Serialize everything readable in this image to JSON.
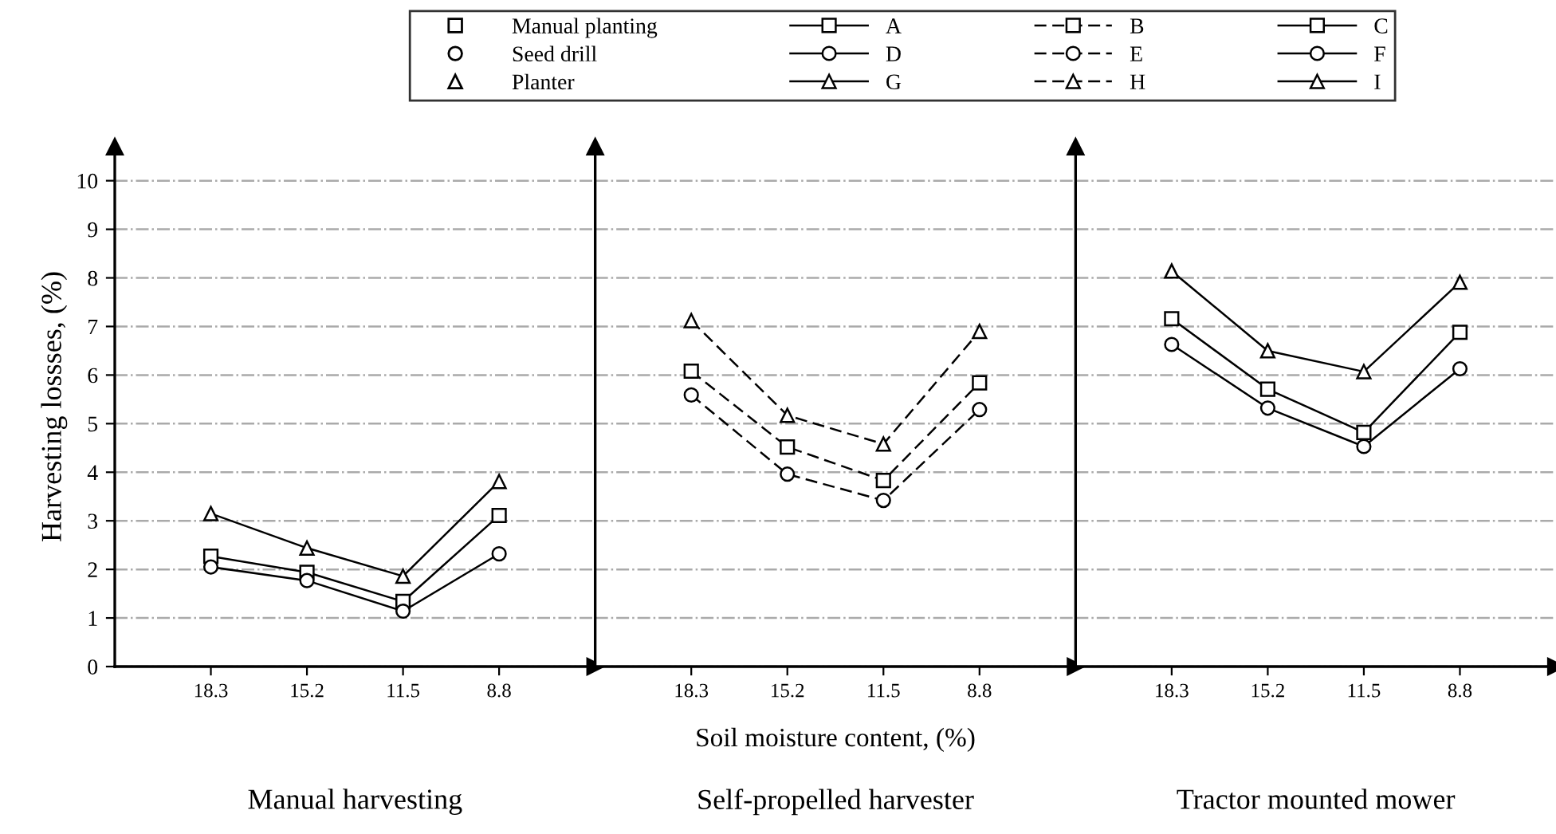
{
  "chart_data": [
    {
      "type": "line",
      "title": "Manual harvesting",
      "ylabel": "Harvesting lossses, (%)",
      "categories": [
        "18.3",
        "15.2",
        "11.5",
        "8.8"
      ],
      "ylim": [
        0,
        10.7
      ],
      "yticks": [
        0,
        1,
        2,
        3,
        4,
        5,
        6,
        7,
        8,
        9,
        10
      ],
      "grid": "y",
      "legend": "top",
      "line_style": "solid",
      "annotations": [
        "Manual planting",
        "Seed drill",
        "Planter"
      ],
      "series": [
        {
          "name": "A",
          "color": "#000000",
          "marker": "square",
          "values": [
            2.27,
            1.94,
            1.34,
            3.11
          ]
        },
        {
          "name": "D",
          "color": "#000000",
          "marker": "circle",
          "values": [
            2.05,
            1.77,
            1.14,
            2.32
          ]
        },
        {
          "name": "G",
          "color": "#000000",
          "marker": "triangle",
          "values": [
            3.15,
            2.44,
            1.86,
            3.81
          ]
        }
      ]
    },
    {
      "type": "line",
      "title": "Self-propelled harvester",
      "xlabel": "Soil moisture content, (%)",
      "categories": [
        "18.3",
        "15.2",
        "11.5",
        "8.8"
      ],
      "ylim": [
        0,
        10.7
      ],
      "yticks": [
        0,
        1,
        2,
        3,
        4,
        5,
        6,
        7,
        8,
        9,
        10
      ],
      "grid": "y",
      "legend": "top",
      "line_style": "dashed",
      "tick_labels": "x",
      "series": [
        {
          "name": "B",
          "color": "#000000",
          "marker": "square",
          "values": [
            6.08,
            4.52,
            3.83,
            5.84
          ]
        },
        {
          "name": "E",
          "color": "#000000",
          "marker": "circle",
          "values": [
            5.59,
            3.96,
            3.42,
            5.29
          ]
        },
        {
          "name": "H",
          "color": "#000000",
          "marker": "triangle",
          "values": [
            7.12,
            5.17,
            4.58,
            6.9
          ]
        }
      ]
    },
    {
      "type": "line",
      "title": "Tractor mounted mower",
      "categories": [
        "18.3",
        "15.2",
        "11.5",
        "8.8"
      ],
      "ylim": [
        0,
        10.7
      ],
      "yticks": [
        0,
        1,
        2,
        3,
        4,
        5,
        6,
        7,
        8,
        9,
        10
      ],
      "grid": "y",
      "legend": "top",
      "line_style": "solid",
      "tick_labels": "x",
      "series": [
        {
          "name": "C",
          "color": "#000000",
          "marker": "square",
          "values": [
            7.16,
            5.71,
            4.82,
            6.88
          ]
        },
        {
          "name": "F",
          "color": "#000000",
          "marker": "circle",
          "values": [
            6.63,
            5.32,
            4.53,
            6.13
          ]
        },
        {
          "name": "I",
          "color": "#000000",
          "marker": "triangle",
          "values": [
            8.14,
            6.5,
            6.07,
            7.91
          ]
        }
      ]
    }
  ]
}
